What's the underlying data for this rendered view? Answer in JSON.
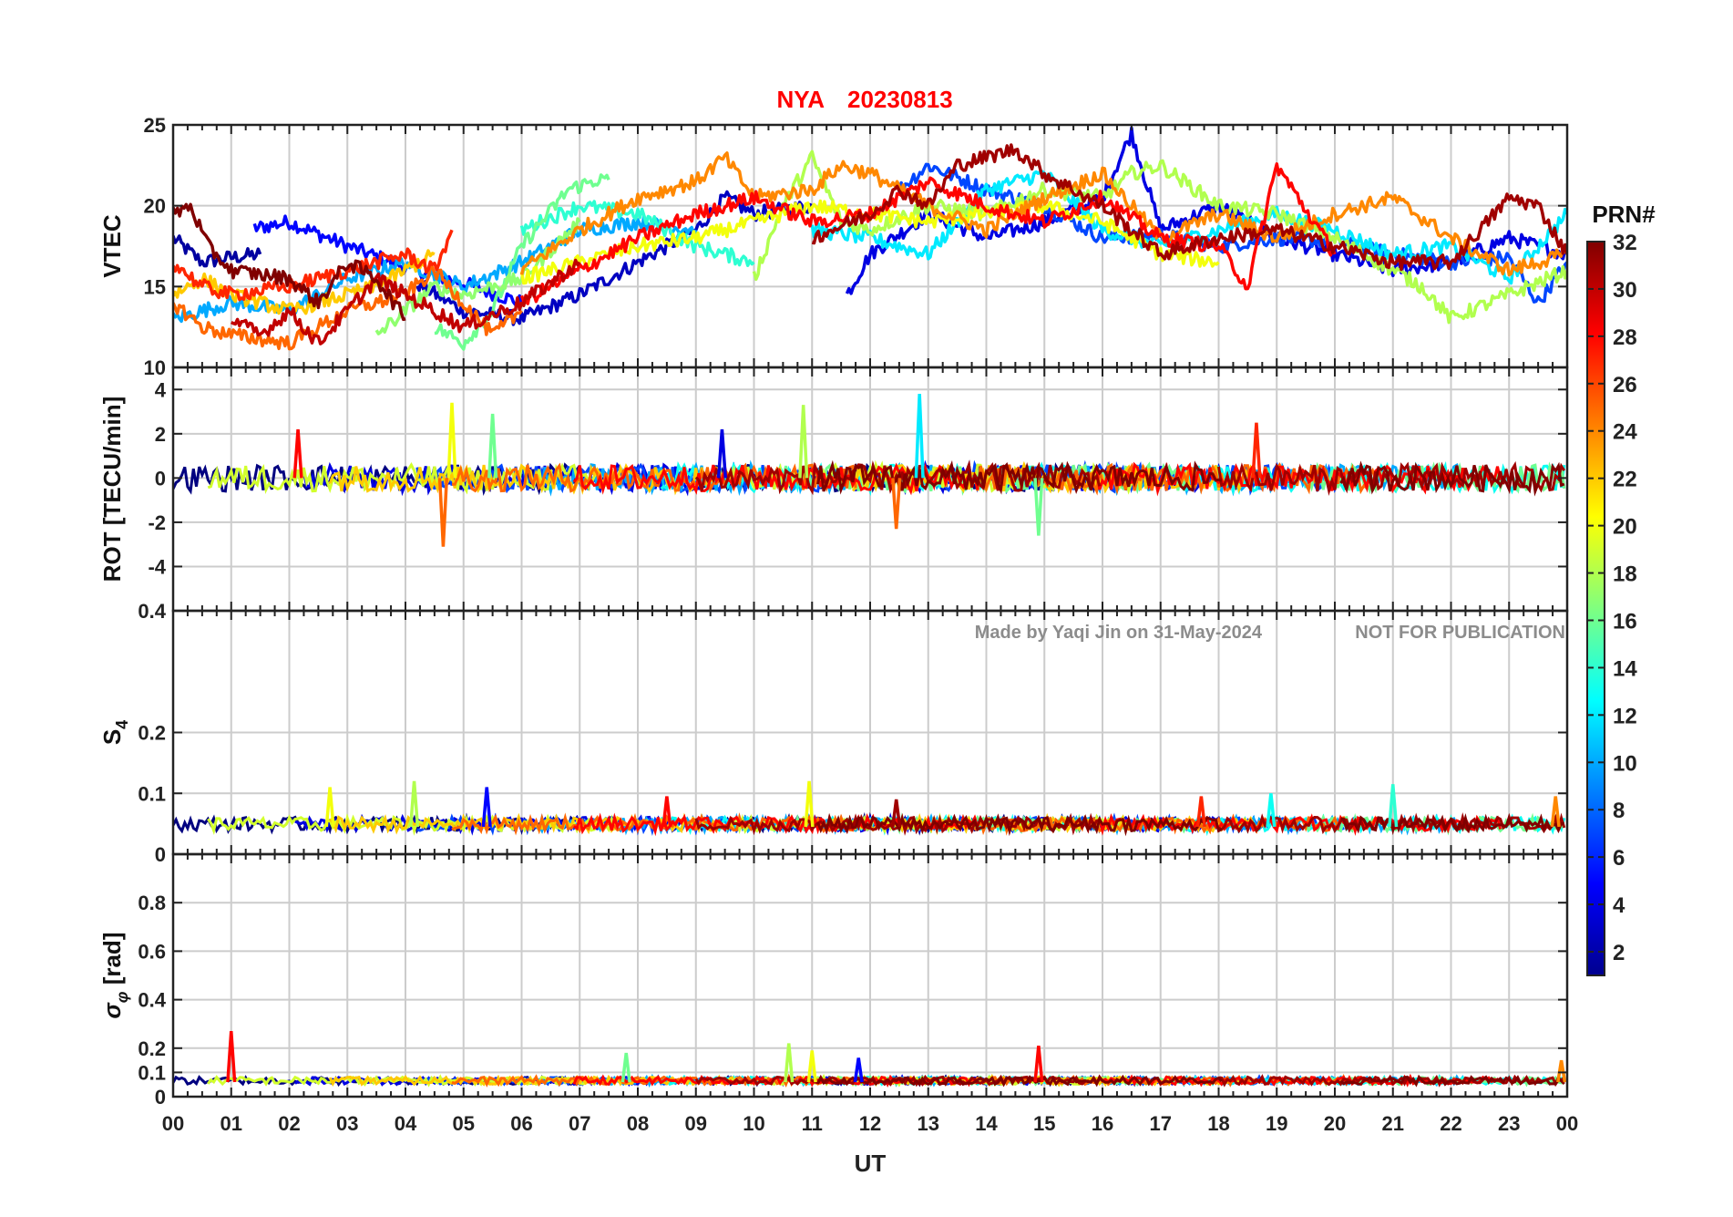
{
  "title": {
    "station": "NYA",
    "date": "20230813",
    "color": "#ff0000"
  },
  "watermark": {
    "credit": "Made by Yaqi Jin on 31-May-2024",
    "notice": "NOT FOR PUBLICATION",
    "color": "#8c8c8c"
  },
  "x_axis": {
    "label": "UT",
    "tick_labels": [
      "00",
      "01",
      "02",
      "03",
      "04",
      "05",
      "06",
      "07",
      "08",
      "09",
      "10",
      "11",
      "12",
      "13",
      "14",
      "15",
      "16",
      "17",
      "18",
      "19",
      "20",
      "21",
      "22",
      "23",
      "00"
    ],
    "range_hours": [
      0,
      24
    ]
  },
  "colorbar": {
    "title": "PRN#",
    "colormap": "jet",
    "range": [
      1,
      32
    ],
    "tick_labels": [
      "2",
      "4",
      "6",
      "8",
      "10",
      "12",
      "14",
      "16",
      "18",
      "20",
      "22",
      "24",
      "26",
      "28",
      "30",
      "32"
    ]
  },
  "chart_data": [
    {
      "type": "line",
      "panel": "vtec",
      "ylabel": "VTEC",
      "ylim": [
        10,
        25
      ],
      "yticks": [
        "10",
        "15",
        "20",
        "25"
      ],
      "grid": true,
      "x_unit": "hours UT",
      "series": [
        {
          "prn": 2,
          "x": [
            0.0,
            0.5,
            1.0,
            1.5
          ],
          "y": [
            18,
            16.5,
            16.8,
            17.0
          ]
        },
        {
          "prn": 5,
          "x": [
            1.4,
            2.0,
            3.0,
            4.0,
            5.0,
            6.0
          ],
          "y": [
            18.6,
            19.0,
            17.5,
            16.2,
            15.2,
            14.0
          ]
        },
        {
          "prn": 3,
          "x": [
            4.2,
            5.0,
            6.0,
            7.0,
            8.0,
            9.0,
            9.5,
            10.0,
            11.0
          ],
          "y": [
            15.2,
            13.5,
            13.0,
            14.5,
            16.5,
            18.5,
            20.5,
            19.5,
            20.0
          ]
        },
        {
          "prn": 4,
          "x": [
            11.6,
            12.0,
            13.0,
            14.0,
            15.0,
            16.0,
            16.5,
            17.0,
            18.0,
            19.0,
            20.0,
            21.0,
            22.0,
            23.0,
            24.0
          ],
          "y": [
            14.5,
            17.0,
            19.5,
            18.0,
            19.0,
            20.5,
            24.5,
            18.5,
            20.0,
            18.0,
            17.0,
            16.0,
            16.5,
            18.0,
            17.0
          ]
        },
        {
          "prn": 7,
          "x": [
            12.5,
            13.0,
            14.0,
            15.0,
            16.0,
            17.0,
            18.0,
            19.0,
            20.0,
            21.0,
            22.0,
            23.0,
            23.5,
            24.0
          ],
          "y": [
            21.0,
            22.5,
            21.0,
            20.0,
            18.0,
            18.2,
            17.5,
            18.0,
            17.8,
            17.0,
            16.5,
            16.8,
            14.0,
            16.5
          ]
        },
        {
          "prn": 10,
          "x": [
            0.0,
            1.0,
            2.0,
            3.0,
            4.0,
            5.0,
            6.0,
            7.0,
            8.0,
            9.0
          ],
          "y": [
            13.0,
            14.0,
            13.5,
            15.5,
            16.5,
            15.0,
            16.5,
            18.5,
            19.0,
            18.5
          ]
        },
        {
          "prn": 12,
          "x": [
            11.0,
            12.0,
            13.0,
            14.0,
            15.0,
            16.0,
            17.0,
            18.0,
            19.0,
            20.0,
            21.0,
            22.0,
            23.0,
            24.0
          ],
          "y": [
            18.5,
            18.0,
            17.0,
            21.0,
            22.0,
            18.5,
            17.5,
            18.5,
            19.5,
            18.5,
            17.0,
            17.5,
            15.5,
            19.5
          ]
        },
        {
          "prn": 14,
          "x": [
            6.0,
            7.0,
            8.0,
            9.0,
            9.5,
            10.0
          ],
          "y": [
            18.5,
            20.0,
            19.5,
            17.5,
            17.0,
            16.5
          ]
        },
        {
          "prn": 16,
          "x": [
            4.5,
            5.0,
            5.5,
            6.0,
            6.8,
            7.3,
            7.5
          ],
          "y": [
            12.5,
            11.5,
            13.5,
            17.5,
            21.0,
            21.6,
            21.6
          ]
        },
        {
          "prn": 17,
          "x": [
            3.5,
            4.0,
            4.5,
            5.0,
            6.0,
            7.0
          ],
          "y": [
            12.0,
            13.5,
            15.0,
            14.5,
            15.5,
            19.0
          ]
        },
        {
          "prn": 18,
          "x": [
            10.0,
            10.5,
            11.0,
            11.5,
            12.0,
            13.0,
            14.0,
            15.0,
            16.0,
            16.5,
            17.0,
            18.0,
            19.0,
            20.0,
            21.0,
            21.5,
            22.0,
            23.0,
            24.0
          ],
          "y": [
            15.5,
            20.0,
            23.0,
            19.0,
            18.5,
            20.0,
            19.5,
            21.0,
            20.5,
            22.0,
            22.5,
            20.0,
            19.5,
            18.0,
            16.0,
            15.0,
            13.0,
            14.5,
            16.0
          ]
        },
        {
          "prn": 20,
          "x": [
            6.0,
            7.0,
            8.0,
            9.0,
            10.0,
            11.0,
            12.0,
            13.0,
            14.0,
            15.0,
            16.0,
            17.0,
            18.0
          ],
          "y": [
            15.5,
            16.5,
            17.5,
            18.0,
            19.0,
            20.0,
            19.5,
            19.0,
            19.5,
            20.0,
            19.0,
            17.0,
            16.5
          ]
        },
        {
          "prn": 22,
          "x": [
            0.0,
            0.5,
            1.0,
            2.0,
            3.0,
            3.5,
            4.0,
            4.5
          ],
          "y": [
            14.5,
            15.5,
            14.5,
            13.5,
            14.5,
            15.0,
            16.0,
            17.0
          ]
        },
        {
          "prn": 24,
          "x": [
            6.0,
            7.0,
            8.0,
            9.0,
            9.5,
            10.0,
            11.0,
            11.5,
            12.0,
            13.0,
            14.0,
            15.0,
            16.0,
            17.0,
            18.0,
            19.0,
            20.0,
            21.0,
            22.0,
            23.0,
            24.0
          ],
          "y": [
            16.0,
            18.5,
            20.5,
            21.5,
            23.0,
            20.5,
            21.0,
            22.5,
            22.0,
            20.0,
            18.5,
            20.5,
            22.0,
            18.0,
            19.5,
            18.0,
            19.5,
            20.5,
            18.0,
            16.0,
            17.0
          ]
        },
        {
          "prn": 25,
          "x": [
            0.0,
            0.5,
            1.0,
            2.0,
            3.0,
            4.0,
            4.5,
            5.0,
            5.5,
            6.0
          ],
          "y": [
            14.0,
            12.5,
            12.0,
            11.5,
            13.5,
            14.5,
            16.0,
            14.0,
            12.0,
            13.5
          ]
        },
        {
          "prn": 27,
          "x": [
            0.0,
            0.5,
            1.0,
            2.0,
            3.0,
            4.0,
            4.5,
            4.8
          ],
          "y": [
            16.5,
            15.0,
            14.5,
            15.0,
            16.0,
            17.0,
            16.0,
            18.5
          ]
        },
        {
          "prn": 28,
          "x": [
            6.0,
            7.0,
            8.0,
            9.0,
            10.0,
            11.0,
            12.0,
            13.0,
            14.0,
            15.0,
            16.0,
            17.0,
            18.0,
            18.5,
            19.0,
            20.0
          ],
          "y": [
            14.0,
            16.0,
            18.0,
            19.5,
            20.5,
            19.0,
            19.5,
            21.5,
            20.0,
            19.0,
            20.5,
            18.0,
            17.5,
            15.0,
            22.5,
            17.0
          ]
        },
        {
          "prn": 30,
          "x": [
            1.0,
            1.5,
            2.0,
            2.5,
            3.0,
            3.5,
            4.0,
            5.0,
            6.0,
            7.0
          ],
          "y": [
            13.0,
            12.0,
            13.5,
            11.5,
            13.5,
            15.5,
            14.5,
            12.5,
            14.0,
            16.5
          ]
        },
        {
          "prn": 32,
          "x": [
            0.0,
            0.3,
            0.6,
            1.0,
            2.0,
            2.5,
            3.0,
            3.5,
            4.0
          ],
          "y": [
            19.5,
            20.0,
            17.5,
            16.0,
            15.5,
            14.0,
            16.5,
            15.5,
            13.0
          ]
        },
        {
          "prn": 31,
          "x": [
            11.0,
            12.0,
            12.5,
            13.0,
            13.5,
            14.0,
            14.5,
            15.0,
            16.0,
            17.0,
            18.0,
            19.0,
            20.0,
            21.0,
            22.0,
            23.0,
            23.5,
            24.0
          ],
          "y": [
            18.0,
            19.5,
            21.0,
            20.0,
            22.5,
            23.0,
            23.5,
            22.0,
            20.0,
            17.0,
            18.0,
            18.5,
            17.5,
            16.5,
            16.5,
            20.5,
            20.0,
            17.0
          ]
        }
      ]
    },
    {
      "type": "line",
      "panel": "rot",
      "ylabel": "ROT [TECU/min]",
      "ylim": [
        -6,
        5
      ],
      "yticks": [
        "-4",
        "-2",
        "0",
        "2",
        "4"
      ],
      "grid": true,
      "baseline": 0,
      "typical_amplitude": 0.6,
      "spikes": [
        {
          "x": 4.8,
          "y": 3.4,
          "prn": 20
        },
        {
          "x": 4.65,
          "y": -3.1,
          "prn": 25
        },
        {
          "x": 5.5,
          "y": 2.9,
          "prn": 16
        },
        {
          "x": 10.85,
          "y": 3.3,
          "prn": 18
        },
        {
          "x": 12.85,
          "y": 3.8,
          "prn": 12
        },
        {
          "x": 14.9,
          "y": -2.6,
          "prn": 16
        },
        {
          "x": 18.65,
          "y": 2.5,
          "prn": 27
        },
        {
          "x": 2.15,
          "y": 2.2,
          "prn": 28
        },
        {
          "x": 9.45,
          "y": 2.2,
          "prn": 4
        },
        {
          "x": 12.45,
          "y": -2.3,
          "prn": 25
        }
      ]
    },
    {
      "type": "line",
      "panel": "s4",
      "ylabel": "S4",
      "ylim": [
        0,
        0.4
      ],
      "yticks": [
        "0",
        "0.1",
        "0.2",
        "0.4"
      ],
      "grid": true,
      "baseline": 0.045,
      "spikes": [
        {
          "x": 2.7,
          "y": 0.11,
          "prn": 20
        },
        {
          "x": 4.15,
          "y": 0.12,
          "prn": 18
        },
        {
          "x": 5.4,
          "y": 0.11,
          "prn": 5
        },
        {
          "x": 8.5,
          "y": 0.095,
          "prn": 28
        },
        {
          "x": 10.95,
          "y": 0.12,
          "prn": 20
        },
        {
          "x": 12.45,
          "y": 0.09,
          "prn": 31
        },
        {
          "x": 17.7,
          "y": 0.095,
          "prn": 27
        },
        {
          "x": 18.9,
          "y": 0.1,
          "prn": 13
        },
        {
          "x": 21.0,
          "y": 0.115,
          "prn": 14
        },
        {
          "x": 23.8,
          "y": 0.095,
          "prn": 24
        }
      ]
    },
    {
      "type": "line",
      "panel": "sigma_phi",
      "ylabel": "σφ [rad]",
      "ylim": [
        0,
        1
      ],
      "yticks": [
        "0",
        "0.1",
        "0.2",
        "0.4",
        "0.6",
        "0.8"
      ],
      "grid": true,
      "baseline": 0.06,
      "spikes": [
        {
          "x": 1.0,
          "y": 0.27,
          "prn": 28
        },
        {
          "x": 7.8,
          "y": 0.18,
          "prn": 16
        },
        {
          "x": 10.6,
          "y": 0.22,
          "prn": 18
        },
        {
          "x": 11.0,
          "y": 0.19,
          "prn": 20
        },
        {
          "x": 11.8,
          "y": 0.16,
          "prn": 5
        },
        {
          "x": 14.9,
          "y": 0.21,
          "prn": 28
        },
        {
          "x": 23.9,
          "y": 0.15,
          "prn": 24
        }
      ]
    }
  ]
}
